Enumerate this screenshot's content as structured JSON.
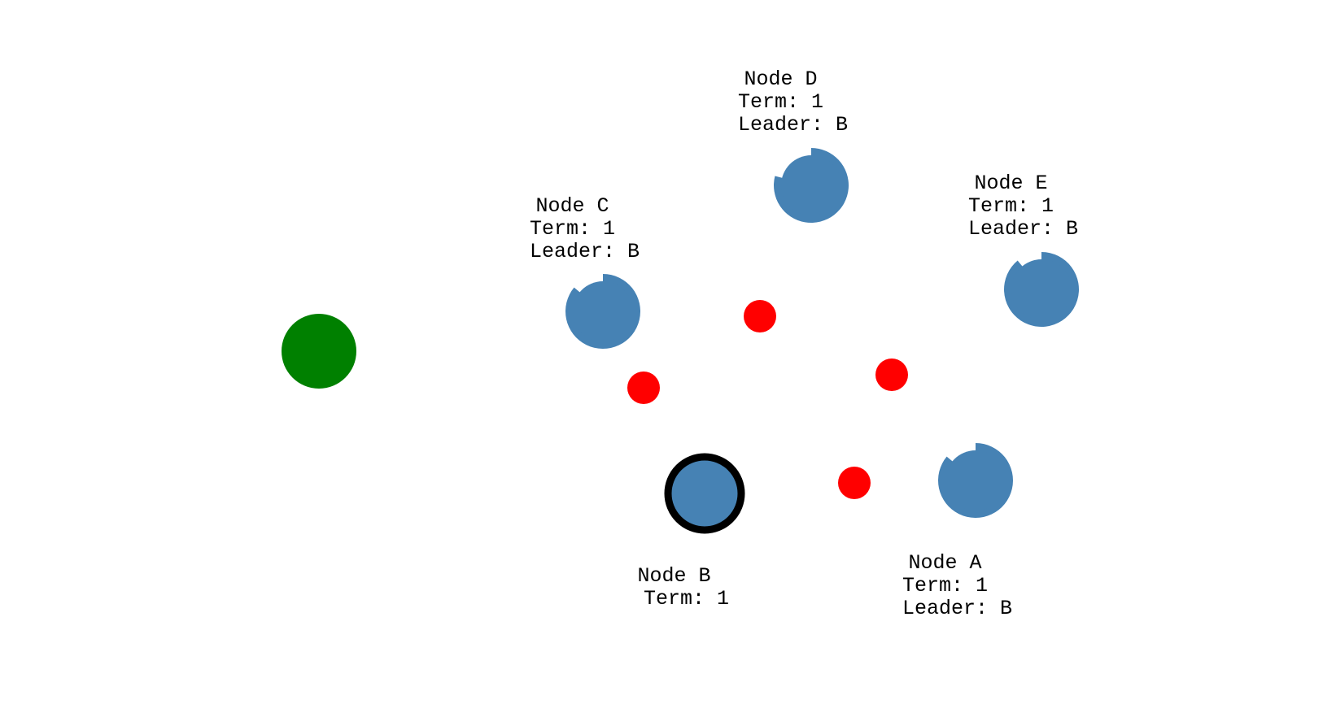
{
  "colors": {
    "node_fill": "#4682b4",
    "leader_ring": "#000000",
    "client_fill": "#008000",
    "message_fill": "#ff0000",
    "background": "#ffffff"
  },
  "nodes": [
    {
      "id": "A",
      "name_line": "Node A",
      "term_line": "Term: 1",
      "leader_line": "Leader: B",
      "is_leader": false,
      "timeout_remaining": 0.86
    },
    {
      "id": "B",
      "name_line": "Node B",
      "term_line": "Term: 1",
      "leader_line": "",
      "is_leader": true,
      "timeout_remaining": 1.0
    },
    {
      "id": "C",
      "name_line": "Node C",
      "term_line": "Term: 1",
      "leader_line": "Leader: B",
      "is_leader": false,
      "timeout_remaining": 0.86
    },
    {
      "id": "D",
      "name_line": "Node D",
      "term_line": "Term: 1",
      "leader_line": "Leader: B",
      "is_leader": false,
      "timeout_remaining": 0.79
    },
    {
      "id": "E",
      "name_line": "Node E",
      "term_line": "Term: 1",
      "leader_line": "Leader: B",
      "is_leader": false,
      "timeout_remaining": 0.89
    }
  ],
  "client": {
    "icon": "client-circle"
  },
  "messages": [
    {
      "icon": "message-dot"
    },
    {
      "icon": "message-dot"
    },
    {
      "icon": "message-dot"
    },
    {
      "icon": "message-dot"
    }
  ]
}
